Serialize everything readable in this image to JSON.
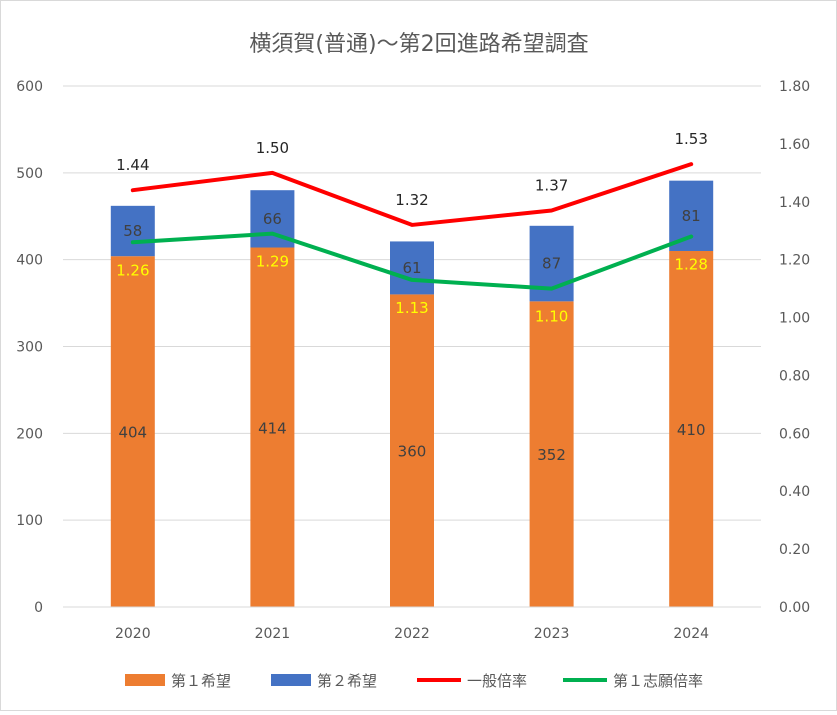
{
  "chart_data": {
    "type": "bar+line",
    "title": "横須賀(普通)～第2回進路希望調査",
    "categories": [
      "2020",
      "2021",
      "2022",
      "2023",
      "2024"
    ],
    "stacked_bars": [
      {
        "name": "第１希望",
        "color": "#ed7d31",
        "values": [
          404,
          414,
          360,
          352,
          410
        ]
      },
      {
        "name": "第２希望",
        "color": "#4472c4",
        "values": [
          58,
          66,
          61,
          87,
          81
        ]
      }
    ],
    "lines": [
      {
        "name": "一般倍率",
        "color": "#ff0000",
        "values": [
          1.44,
          1.5,
          1.32,
          1.37,
          1.53
        ],
        "labels": [
          "1.44",
          "1.50",
          "1.32",
          "1.37",
          "1.53"
        ]
      },
      {
        "name": "第１志願倍率",
        "color": "#00b050",
        "values": [
          1.26,
          1.29,
          1.13,
          1.1,
          1.28
        ],
        "labels": [
          "1.26",
          "1.29",
          "1.13",
          "1.10",
          "1.28"
        ]
      }
    ],
    "y_left": {
      "min": 0,
      "max": 600,
      "ticks": [
        "0",
        "100",
        "200",
        "300",
        "400",
        "500",
        "600"
      ]
    },
    "y_right": {
      "min": 0,
      "max": 1.8,
      "ticks": [
        "0.00",
        "0.20",
        "0.40",
        "0.60",
        "0.80",
        "1.00",
        "1.20",
        "1.40",
        "1.60",
        "1.80"
      ]
    },
    "grid": true,
    "legend_position": "bottom"
  }
}
